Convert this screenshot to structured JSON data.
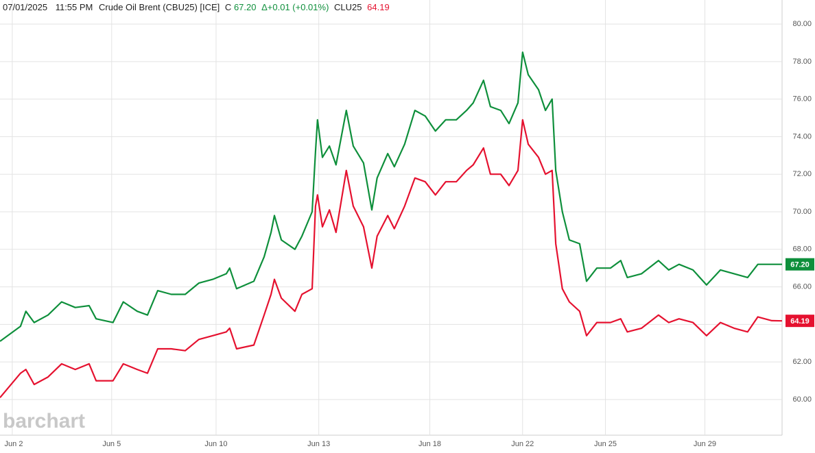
{
  "chart_data": {
    "type": "line",
    "header": {
      "date": "07/01/2025",
      "time": "11:55 PM",
      "close_prefix": "C",
      "close": "67.20",
      "change": "Δ+0.01 (+0.01%)",
      "close2": "64.19"
    },
    "watermark": "barchart",
    "x": [
      -0.37,
      0.25,
      0.41,
      0.66,
      1.08,
      1.49,
      1.9,
      2.32,
      2.53,
      3.04,
      3.35,
      3.77,
      4.08,
      4.39,
      4.8,
      5.22,
      5.63,
      6.05,
      6.46,
      6.56,
      6.77,
      7.29,
      7.6,
      7.81,
      7.91,
      8.12,
      8.53,
      8.74,
      9.05,
      9.15,
      9.21,
      9.36,
      9.57,
      9.77,
      10.08,
      10.29,
      10.6,
      10.85,
      11.01,
      11.33,
      11.53,
      11.84,
      12.15,
      12.46,
      12.77,
      13.08,
      13.4,
      13.71,
      13.91,
      14.22,
      14.43,
      14.74,
      14.99,
      15.26,
      15.4,
      15.57,
      15.88,
      16.09,
      16.29,
      16.4,
      16.6,
      16.81,
      17.12,
      17.33,
      17.64,
      18.05,
      18.36,
      18.56,
      18.99,
      19.5,
      19.81,
      20.12,
      20.54,
      20.95,
      21.37,
      21.78,
      22.19,
      22.5,
      22.92,
      23.23
    ],
    "series": [
      {
        "name": "Crude Oil Brent (CBU25) [ICE]",
        "color": "#0e8f3b",
        "values": [
          63.1,
          63.9,
          64.7,
          64.1,
          64.5,
          65.2,
          64.9,
          65.0,
          64.3,
          64.1,
          65.2,
          64.7,
          64.5,
          65.8,
          65.6,
          65.6,
          66.2,
          66.4,
          66.7,
          67.0,
          65.9,
          66.3,
          67.6,
          68.9,
          69.8,
          68.5,
          68.0,
          68.7,
          70.0,
          73.2,
          74.9,
          72.9,
          73.5,
          72.5,
          75.4,
          73.5,
          72.6,
          70.1,
          71.8,
          73.1,
          72.4,
          73.6,
          75.4,
          75.1,
          74.3,
          74.9,
          74.9,
          75.4,
          75.8,
          77.0,
          75.6,
          75.4,
          74.7,
          75.8,
          78.5,
          77.3,
          76.5,
          75.4,
          76.0,
          72.2,
          70.0,
          68.5,
          68.3,
          66.3,
          67.0,
          67.0,
          67.4,
          66.5,
          66.7,
          67.4,
          66.9,
          67.2,
          66.9,
          66.1,
          66.9,
          66.7,
          66.5,
          67.2,
          67.2,
          67.2
        ]
      },
      {
        "name": "CLU25",
        "color": "#e5112f",
        "values": [
          60.1,
          61.4,
          61.6,
          60.8,
          61.2,
          61.9,
          61.6,
          61.9,
          61.0,
          61.0,
          61.9,
          61.6,
          61.4,
          62.7,
          62.7,
          62.6,
          63.2,
          63.4,
          63.6,
          63.8,
          62.7,
          62.9,
          64.5,
          65.6,
          66.4,
          65.4,
          64.7,
          65.6,
          65.9,
          70.3,
          70.9,
          69.2,
          70.1,
          68.9,
          72.2,
          70.3,
          69.2,
          67.0,
          68.7,
          69.8,
          69.1,
          70.3,
          71.8,
          71.6,
          70.9,
          71.6,
          71.6,
          72.2,
          72.5,
          73.4,
          72.0,
          72.0,
          71.4,
          72.2,
          74.9,
          73.6,
          72.9,
          72.0,
          72.2,
          68.3,
          65.9,
          65.2,
          64.7,
          63.4,
          64.1,
          64.1,
          64.3,
          63.6,
          63.8,
          64.5,
          64.1,
          64.3,
          64.1,
          63.4,
          64.1,
          63.8,
          63.6,
          64.4,
          64.2,
          64.19
        ]
      }
    ],
    "xlim": [
      -0.37,
      23.23
    ],
    "xticks": [
      {
        "value": 0,
        "label": "Jun 2"
      },
      {
        "value": 3,
        "label": "Jun 5"
      },
      {
        "value": 6.15,
        "label": "Jun 10"
      },
      {
        "value": 9.25,
        "label": "Jun 13"
      },
      {
        "value": 12.6,
        "label": "Jun 18"
      },
      {
        "value": 15.4,
        "label": "Jun 22"
      },
      {
        "value": 17.9,
        "label": "Jun 25"
      },
      {
        "value": 20.9,
        "label": "Jun 29"
      }
    ],
    "ylim": [
      58.1,
      81.28
    ],
    "yticks": [
      {
        "value": 60,
        "label": "60.00"
      },
      {
        "value": 62,
        "label": "62.00"
      },
      {
        "value": 64,
        "label": "64.00"
      },
      {
        "value": 66,
        "label": "66.00"
      },
      {
        "value": 68,
        "label": "68.00"
      },
      {
        "value": 70,
        "label": "70.00"
      },
      {
        "value": 72,
        "label": "72.00"
      },
      {
        "value": 74,
        "label": "74.00"
      },
      {
        "value": 76,
        "label": "76.00"
      },
      {
        "value": 78,
        "label": "78.00"
      },
      {
        "value": 80,
        "label": "80.00"
      }
    ],
    "grid": true
  }
}
